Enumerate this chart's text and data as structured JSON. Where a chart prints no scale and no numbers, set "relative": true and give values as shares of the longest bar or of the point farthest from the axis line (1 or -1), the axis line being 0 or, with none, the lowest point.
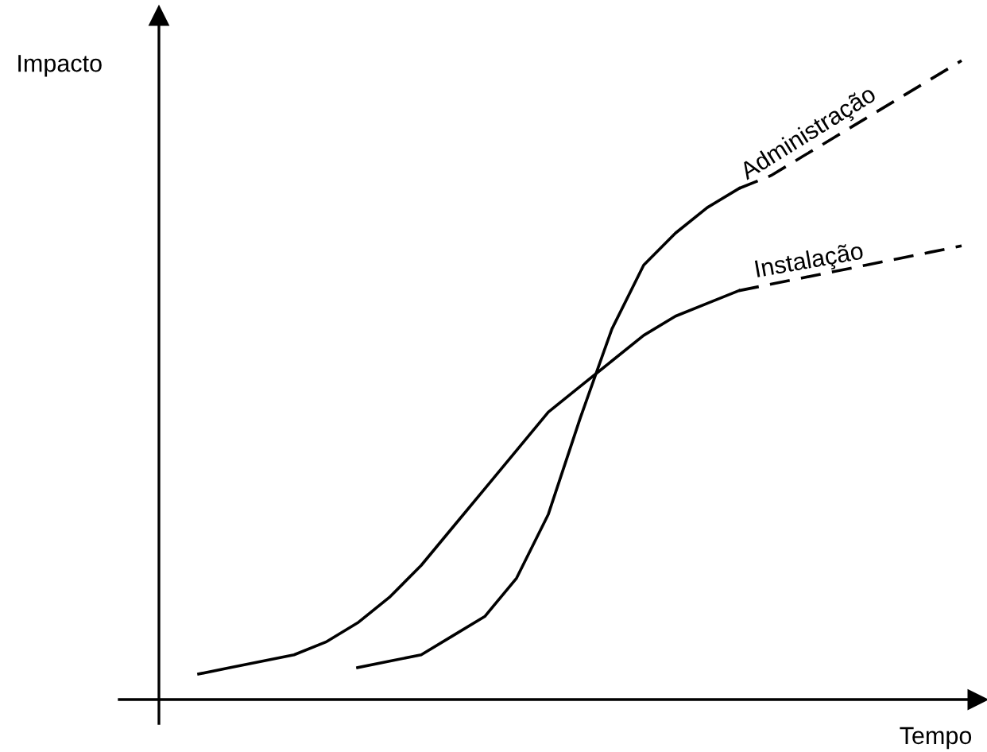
{
  "chart_data": {
    "type": "line",
    "relative": true,
    "xlabel": "Tempo",
    "ylabel": "Impacto",
    "categories": [
      null,
      null,
      null,
      null,
      null,
      null,
      null,
      null,
      null,
      null,
      null,
      null,
      null,
      null,
      null,
      null,
      null,
      null,
      null,
      null,
      null,
      null,
      null,
      null,
      null
    ],
    "series": [
      {
        "name": "Instalação",
        "color": "#000000",
        "line_style": "solid",
        "values": [
          0.04,
          0.05,
          0.06,
          0.07,
          0.09,
          0.12,
          0.16,
          0.21,
          0.27,
          0.33,
          0.39,
          0.45,
          0.49,
          0.53,
          0.57,
          0.6,
          0.62,
          0.64,
          null,
          null,
          null,
          null,
          null,
          null,
          null
        ]
      },
      {
        "color": "#000000",
        "line_style": "dashed",
        "values": [
          null,
          null,
          null,
          null,
          null,
          null,
          null,
          null,
          null,
          null,
          null,
          null,
          null,
          null,
          null,
          null,
          null,
          0.64,
          0.65,
          0.66,
          0.67,
          0.68,
          0.69,
          0.7,
          0.71
        ]
      },
      {
        "name": "Administração",
        "color": "#000000",
        "line_style": "solid",
        "values": [
          null,
          null,
          null,
          null,
          null,
          0.05,
          0.06,
          0.07,
          0.1,
          0.13,
          0.19,
          0.29,
          0.44,
          0.58,
          0.68,
          0.73,
          0.77,
          0.8,
          null,
          null,
          null,
          null,
          null,
          null,
          null
        ]
      },
      {
        "color": "#000000",
        "line_style": "dashed",
        "values": [
          null,
          null,
          null,
          null,
          null,
          null,
          null,
          null,
          null,
          null,
          null,
          null,
          null,
          null,
          null,
          null,
          null,
          0.8,
          0.82,
          0.85,
          0.88,
          0.91,
          0.94,
          0.97,
          1
        ]
      }
    ],
    "legend": false
  }
}
